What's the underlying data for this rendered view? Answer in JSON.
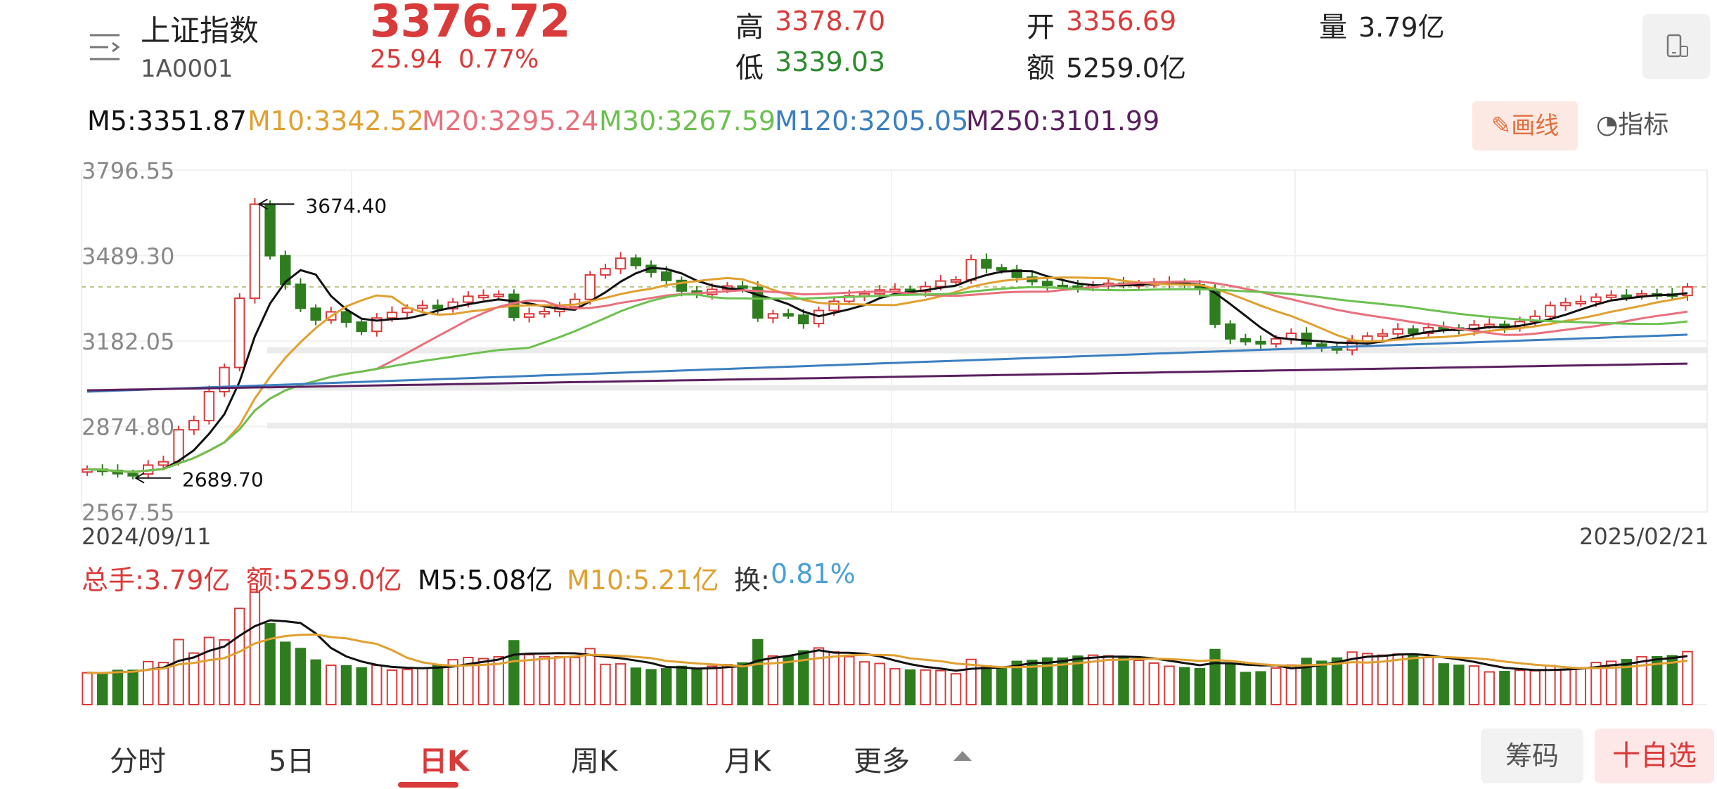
{
  "header": {
    "name": "上证指数",
    "code": "1A0001",
    "price": "3376.72",
    "change": "25.94",
    "change_pct": "0.77%",
    "high_label": "高",
    "high": "3378.70",
    "low_label": "低",
    "low": "3339.03",
    "open_label": "开",
    "open": "3356.69",
    "amount_label": "额",
    "amount": "5259.0亿",
    "volume_label": "量",
    "volume": "3.79亿"
  },
  "ma_legend": [
    {
      "text": "M5:3351.87",
      "color": "#111111"
    },
    {
      "text": "M10:3342.52",
      "color": "#e0a030"
    },
    {
      "text": "M20:3295.24",
      "color": "#e8707c"
    },
    {
      "text": "M30:3267.59",
      "color": "#6dc050"
    },
    {
      "text": "M120:3205.05",
      "color": "#3b7fbf"
    },
    {
      "text": "M250:3101.99",
      "color": "#5a1f5f"
    }
  ],
  "toolbar": {
    "draw_label": "画线",
    "indicator_label": "指标"
  },
  "date_range": {
    "start": "2024/09/11",
    "end": "2025/02/21"
  },
  "volume_legend": [
    {
      "text": "总手:3.79亿",
      "color": "#d93a3a"
    },
    {
      "text": "额:5259.0亿",
      "color": "#d93a3a"
    },
    {
      "text": "M5:5.08亿",
      "color": "#111111"
    },
    {
      "text": "M10:5.21亿",
      "color": "#e0a030"
    },
    {
      "text": "换:",
      "color": "#333333"
    },
    {
      "text": "0.81%",
      "color": "#4aa0d8"
    }
  ],
  "tabs": {
    "items": [
      "分时",
      "5日",
      "日K",
      "周K",
      "月K",
      "更多"
    ],
    "active": "日K",
    "chip_label": "筹码",
    "watch_label": "十自选"
  },
  "colors": {
    "up": "#d93a3a",
    "down": "#2e7d1f",
    "accent": "#d93a3a"
  },
  "chart_data": {
    "type": "candlestick",
    "y_ticks": [
      "3796.55",
      "3489.30",
      "3182.05",
      "2874.80",
      "2567.55"
    ],
    "ylim": [
      2567.55,
      3796.55
    ],
    "max_label": "3674.40",
    "min_label": "2689.70",
    "last_close": 3376.72,
    "closes": [
      2721,
      2717,
      2705,
      2704,
      2736,
      2748,
      2863,
      2896,
      3000,
      3087,
      3336,
      3674,
      3489,
      3386,
      3300,
      3258,
      3287,
      3250,
      3217,
      3265,
      3285,
      3300,
      3310,
      3298,
      3322,
      3343,
      3346,
      3350,
      3268,
      3280,
      3288,
      3305,
      3332,
      3420,
      3442,
      3480,
      3454,
      3430,
      3400,
      3362,
      3350,
      3368,
      3380,
      3375,
      3265,
      3280,
      3275,
      3245,
      3292,
      3325,
      3345,
      3352,
      3366,
      3368,
      3360,
      3378,
      3398,
      3402,
      3475,
      3445,
      3438,
      3412,
      3396,
      3382,
      3380,
      3375,
      3383,
      3390,
      3385,
      3388,
      3391,
      3393,
      3384,
      3367,
      3243,
      3190,
      3180,
      3172,
      3190,
      3210,
      3171,
      3162,
      3150,
      3182,
      3200,
      3208,
      3225,
      3210,
      3230,
      3229,
      3220,
      3240,
      3242,
      3230,
      3252,
      3271,
      3310,
      3320,
      3324,
      3340,
      3347,
      3345,
      3352,
      3351,
      3346,
      3376.72
    ],
    "volume_legend_values": {
      "total": "3.79亿",
      "amount": "5259.0亿",
      "m5": "5.08亿",
      "m10": "5.21亿",
      "turnover": "0.81%"
    }
  }
}
